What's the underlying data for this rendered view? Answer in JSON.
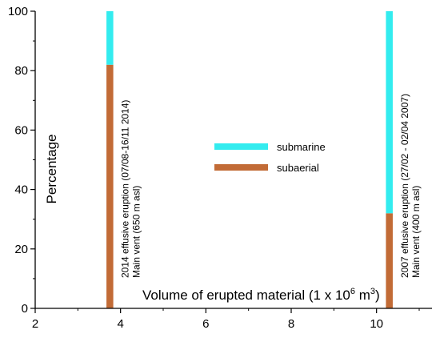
{
  "chart_data": {
    "type": "bar",
    "stacked": true,
    "xlabel_main": "Volume of erupted material (1 x 10",
    "xlabel_sup": "6",
    "xlabel_unit_pre": " m",
    "xlabel_unit_sup": "3",
    "xlabel_close": ")",
    "ylabel": "Percentage",
    "xlim": [
      2,
      11.3
    ],
    "ylim": [
      0,
      100
    ],
    "xticks": [
      2,
      4,
      6,
      8,
      10
    ],
    "yticks": [
      0,
      20,
      40,
      60,
      80,
      100
    ],
    "bar_width": 0.16,
    "colors": {
      "submarine": "#33ecef",
      "subaerial": "#c26b36"
    },
    "legend": [
      {
        "key": "submarine",
        "label": "submarine"
      },
      {
        "key": "subaerial",
        "label": "subaerial"
      }
    ],
    "bars": [
      {
        "x": 3.75,
        "subaerial": 82,
        "submarine": 18,
        "annotation_line1": "2014 effusive eruption (07/08-16/11 2014)",
        "annotation_line2": "Main vent (650 m asl)"
      },
      {
        "x": 10.3,
        "subaerial": 32,
        "submarine": 68,
        "annotation_line1": "2007 effusive eruption (27/02 - 02/04 2007)",
        "annotation_line2": "Main vent (400 m asl)"
      }
    ]
  }
}
